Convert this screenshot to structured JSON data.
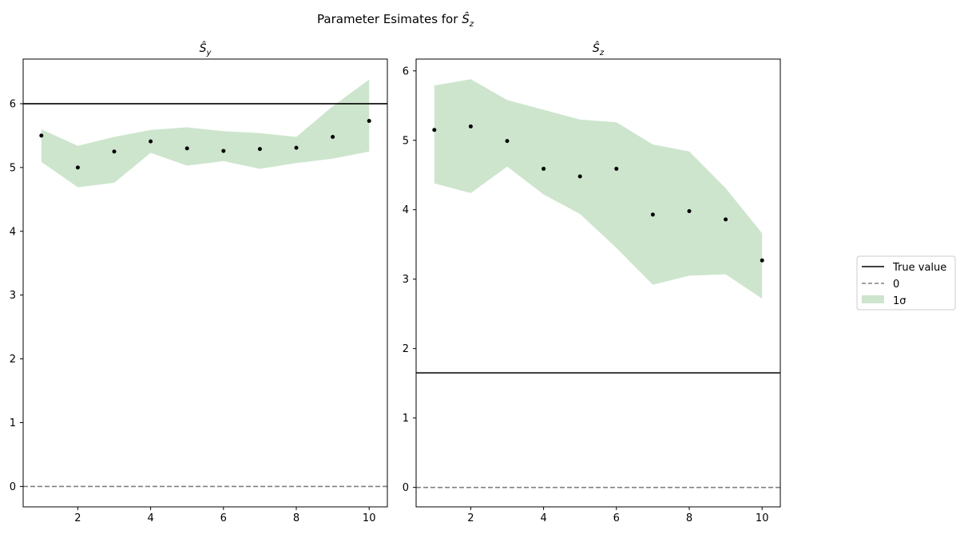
{
  "figure": {
    "suptitle_prefix": "Parameter Esimates for ",
    "suptitle_symbol": "Ŝ",
    "suptitle_sub": "z"
  },
  "legend": {
    "placement": "center-right",
    "items": [
      {
        "label": "True value",
        "style": "solid-line",
        "color": "#000000"
      },
      {
        "label": "0",
        "style": "dashed-line",
        "color": "#808080"
      },
      {
        "label": "1σ",
        "style": "patch",
        "color": "#cde5cd"
      }
    ]
  },
  "chart_data": [
    {
      "type": "scatter",
      "title_symbol": "Ŝ",
      "title_sub": "y",
      "x": [
        1,
        2,
        3,
        4,
        5,
        6,
        7,
        8,
        9,
        10
      ],
      "y": [
        5.5,
        5.0,
        5.25,
        5.41,
        5.3,
        5.26,
        5.29,
        5.31,
        5.48,
        5.73
      ],
      "band_upper": [
        5.6,
        5.34,
        5.48,
        5.59,
        5.63,
        5.57,
        5.54,
        5.48,
        5.96,
        6.38
      ],
      "band_lower": [
        5.09,
        4.69,
        4.76,
        5.23,
        5.03,
        5.1,
        4.98,
        5.07,
        5.14,
        5.25
      ],
      "true_value": 6.0,
      "zero_line": 0,
      "xlim": [
        0.5,
        10.5
      ],
      "ylim": [
        -0.32,
        6.7
      ],
      "xticks": [
        2,
        4,
        6,
        8,
        10
      ],
      "yticks": [
        0,
        1,
        2,
        3,
        4,
        5,
        6
      ],
      "marker_color": "#000000",
      "band_color": "#cde5cd",
      "grid": false
    },
    {
      "type": "scatter",
      "title_symbol": "Ŝ",
      "title_sub": "z",
      "x": [
        1,
        2,
        3,
        4,
        5,
        6,
        7,
        8,
        9,
        10
      ],
      "y": [
        5.15,
        5.2,
        4.99,
        4.59,
        4.48,
        4.59,
        3.93,
        3.98,
        3.86,
        3.27
      ],
      "band_upper": [
        5.79,
        5.88,
        5.58,
        5.44,
        5.3,
        5.26,
        4.94,
        4.84,
        4.31,
        3.66
      ],
      "band_lower": [
        4.38,
        4.24,
        4.62,
        4.22,
        3.94,
        3.45,
        2.92,
        3.05,
        3.07,
        2.72
      ],
      "true_value": 1.65,
      "zero_line": 0,
      "xlim": [
        0.5,
        10.5
      ],
      "ylim": [
        -0.28,
        6.17
      ],
      "xticks": [
        2,
        4,
        6,
        8,
        10
      ],
      "yticks": [
        0,
        1,
        2,
        3,
        4,
        5,
        6
      ],
      "marker_color": "#000000",
      "band_color": "#cde5cd",
      "grid": false
    }
  ]
}
